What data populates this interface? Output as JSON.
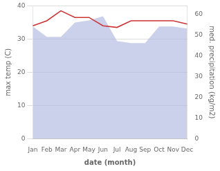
{
  "chart_data": {
    "type": "line",
    "categories": [
      "Jan",
      "Feb",
      "Mar",
      "Apr",
      "May",
      "Jun",
      "Jul",
      "Aug",
      "Sep",
      "Oct",
      "Nov",
      "Dec"
    ],
    "series": [
      {
        "type": "area",
        "color": "#b0b8e0",
        "axis": "y2",
        "values": [
          54,
          49,
          49,
          56,
          57,
          59,
          47,
          46,
          46,
          54,
          54,
          53
        ]
      },
      {
        "type": "line",
        "color": "#cc3333",
        "values": [
          34.0,
          35.5,
          38.5,
          36.5,
          36.5,
          34.0,
          33.5,
          35.5,
          35.5,
          35.5,
          35.5,
          34.5
        ]
      }
    ],
    "ylim": [
      0,
      40
    ],
    "yticks": [
      0,
      10,
      20,
      30,
      40
    ],
    "y2lim": [
      0,
      64
    ],
    "y2ticks": [
      0,
      10,
      20,
      30,
      40,
      50,
      60
    ],
    "xlabel": "date (month)",
    "ylabel": "max temp (C)",
    "y2label": "med. precipitation (kg/m2)",
    "grid": true
  }
}
